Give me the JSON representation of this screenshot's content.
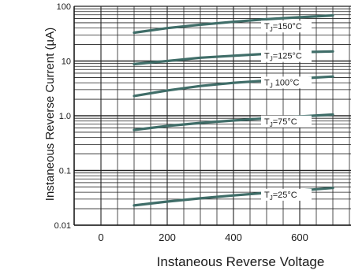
{
  "chart_data": {
    "type": "line",
    "title": "",
    "xlabel": "Instaneous Reverse Voltage",
    "ylabel": "Instaneous Reverse Current (µA)",
    "x_ticks": [
      0,
      200,
      400,
      600
    ],
    "y_ticks": [
      0.01,
      0.1,
      1.0,
      10,
      100
    ],
    "y_tick_labels": [
      "0.01",
      "0.1",
      "1.0",
      "10",
      "100"
    ],
    "xlim": [
      0,
      700
    ],
    "ylim": [
      0.01,
      100
    ],
    "yscale": "log",
    "grid": true,
    "series": [
      {
        "name": "TJ=150°C",
        "label_main": "T",
        "label_sub": "J",
        "label_rest": "=150°C",
        "label_x": 335,
        "label_y": 38,
        "x": [
          0,
          100,
          200,
          300,
          400,
          500,
          600,
          700
        ],
        "y": [
          25,
          33,
          40,
          46,
          52,
          58,
          63,
          68
        ]
      },
      {
        "name": "TJ=125°C",
        "label_main": "T",
        "label_sub": "J",
        "label_rest": "=125°C",
        "label_x": 335,
        "label_y": 11,
        "x": [
          0,
          100,
          200,
          300,
          400,
          500,
          600,
          700
        ],
        "y": [
          7,
          8.8,
          10,
          11.5,
          12.5,
          13.5,
          14.5,
          15
        ]
      },
      {
        "name": "TJ=100°C",
        "label_main": "T",
        "label_sub": "J",
        "label_rest": " 100°C",
        "label_x": 335,
        "label_y": 3.6,
        "x": [
          0,
          100,
          200,
          300,
          400,
          500,
          600,
          700
        ],
        "y": [
          1.6,
          2.3,
          2.9,
          3.5,
          4.0,
          4.4,
          4.8,
          5.2
        ]
      },
      {
        "name": "TJ=75°C",
        "label_main": "T",
        "label_sub": "J",
        "label_rest": "=75°C",
        "label_x": 335,
        "label_y": 0.7,
        "x": [
          0,
          100,
          200,
          300,
          400,
          500,
          600,
          700
        ],
        "y": [
          0.42,
          0.55,
          0.65,
          0.74,
          0.82,
          0.9,
          0.97,
          1.05
        ]
      },
      {
        "name": "TJ=25°C",
        "label_main": "T",
        "label_sub": "J",
        "label_rest": "=25°C",
        "label_x": 335,
        "label_y": 0.032,
        "x": [
          0,
          100,
          200,
          300,
          400,
          500,
          600,
          700
        ],
        "y": [
          0.019,
          0.023,
          0.027,
          0.031,
          0.035,
          0.039,
          0.043,
          0.048
        ]
      }
    ],
    "line_color": "#3f6d68"
  }
}
